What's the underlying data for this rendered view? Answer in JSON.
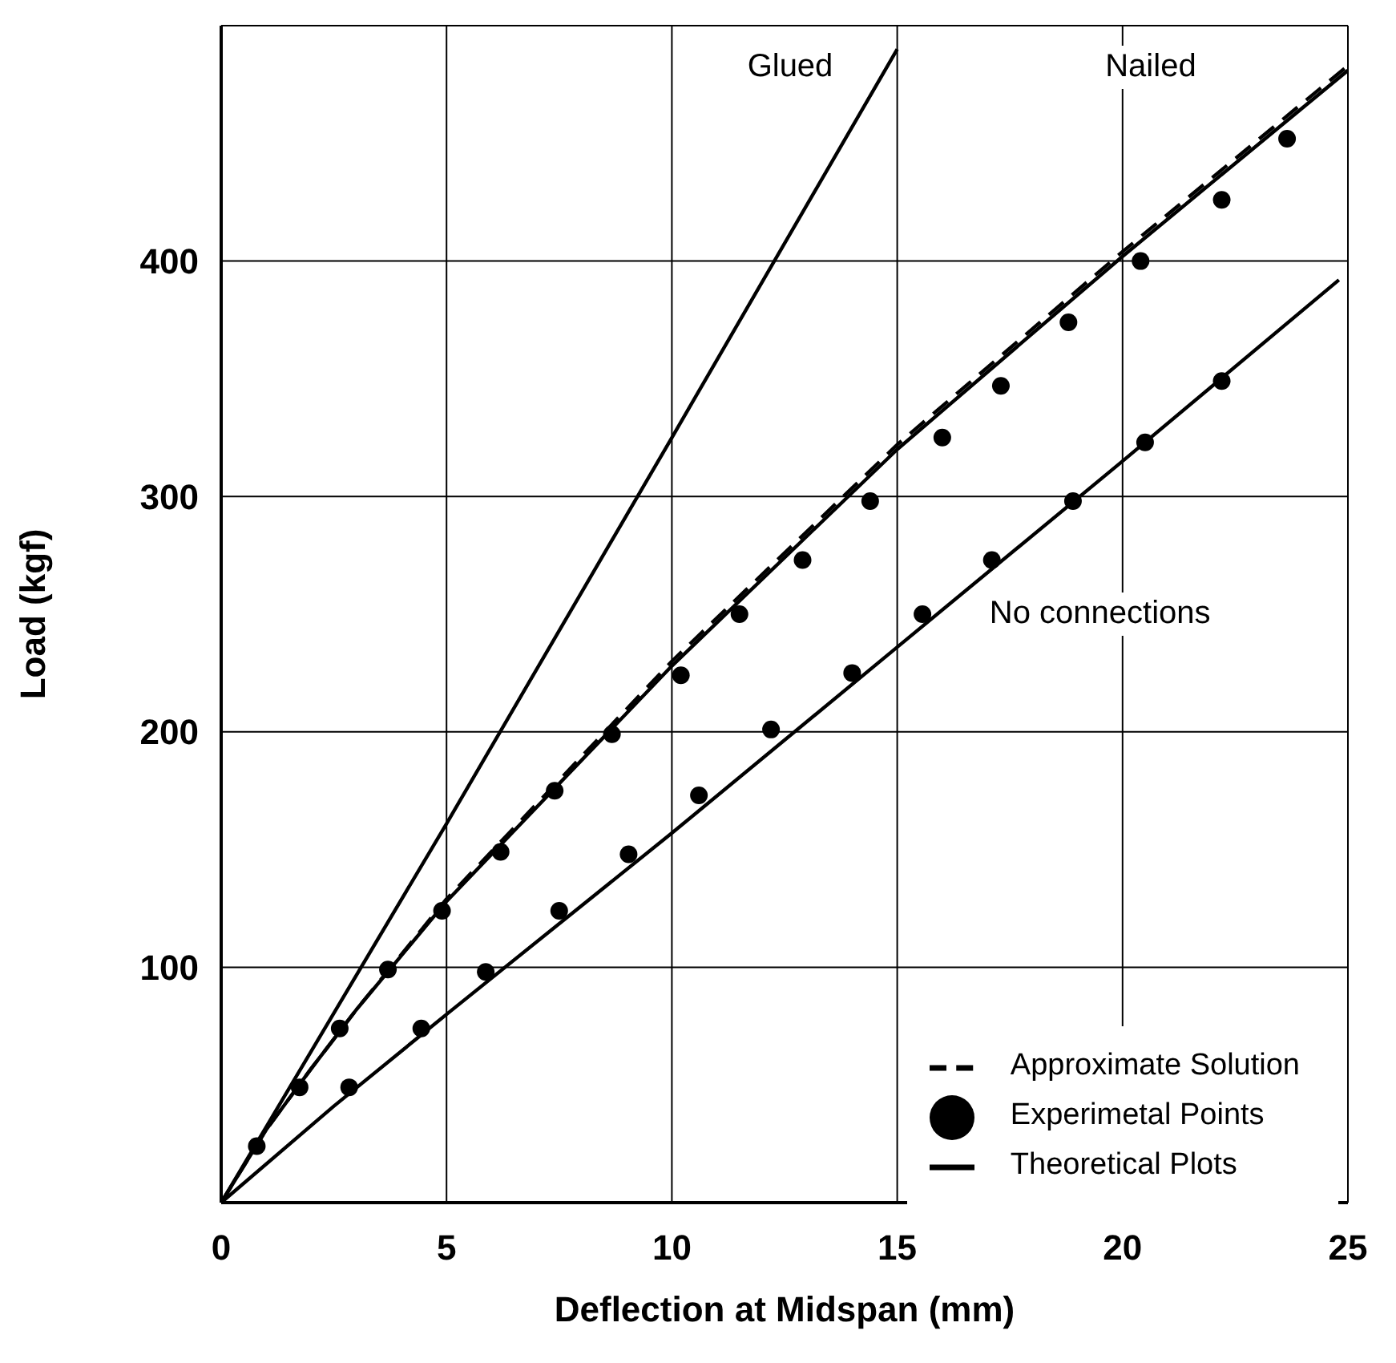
{
  "chart_data": {
    "type": "line",
    "xlabel": "Deflection at Midspan (mm)",
    "ylabel": "Load (kgf)",
    "xlim": [
      0,
      25
    ],
    "xticks": [
      0,
      5,
      10,
      15,
      20,
      25
    ],
    "ylim": [
      0,
      500
    ],
    "yticks": [
      100,
      200,
      300,
      400
    ],
    "grid": true,
    "legend": "bottom right",
    "annotations": [
      "Glued",
      "Nailed",
      "No connections"
    ],
    "series": [
      {
        "name": "Theoretical Plots",
        "color": "#000000",
        "line_style": "solid",
        "marker": "none",
        "x": [
          0,
          5,
          10,
          15
        ],
        "values": [
          0,
          161,
          325,
          490
        ]
      },
      {
        "color": "#000000",
        "line_style": "solid",
        "marker": "none",
        "x": [
          0,
          1,
          2,
          3,
          5,
          10,
          15,
          20,
          25
        ],
        "values": [
          0,
          31,
          57,
          82,
          128,
          228,
          320,
          402,
          481
        ]
      },
      {
        "color": "#000000",
        "line_style": "solid",
        "marker": "none",
        "x": [
          0,
          2.5,
          5,
          10,
          15,
          20,
          24.8
        ],
        "values": [
          0,
          41,
          80,
          157,
          236,
          315,
          392
        ]
      },
      {
        "name": "Approximate Solution",
        "color": "#000000",
        "line_style": "dashed",
        "marker": "none",
        "x": [
          0,
          1,
          2,
          3,
          5,
          10,
          15,
          20,
          25
        ],
        "values": [
          0,
          31,
          57,
          82,
          129,
          230,
          322,
          404,
          483
        ]
      },
      {
        "name": "Experimetal Points",
        "type": "scatter",
        "color": "#000000",
        "marker": "circle",
        "x": [
          0.79,
          1.74,
          2.63,
          3.7,
          4.9,
          6.2,
          7.4,
          8.67,
          10.2,
          11.5,
          12.9,
          14.4,
          16.0,
          17.3,
          18.8,
          20.4,
          22.2,
          23.65
        ],
        "values": [
          24,
          49,
          74,
          99,
          124,
          149,
          175,
          199,
          224,
          250,
          273,
          298,
          325,
          347,
          374,
          400,
          426,
          452
        ]
      },
      {
        "type": "scatter",
        "color": "#000000",
        "marker": "circle",
        "x": [
          2.84,
          4.44,
          5.87,
          7.5,
          9.04,
          10.6,
          12.2,
          14.0,
          15.56,
          17.1,
          18.9,
          20.5,
          22.2
        ],
        "values": [
          49,
          74,
          98,
          124,
          148,
          173,
          201,
          225,
          250,
          273,
          298,
          323,
          349
        ]
      }
    ]
  }
}
